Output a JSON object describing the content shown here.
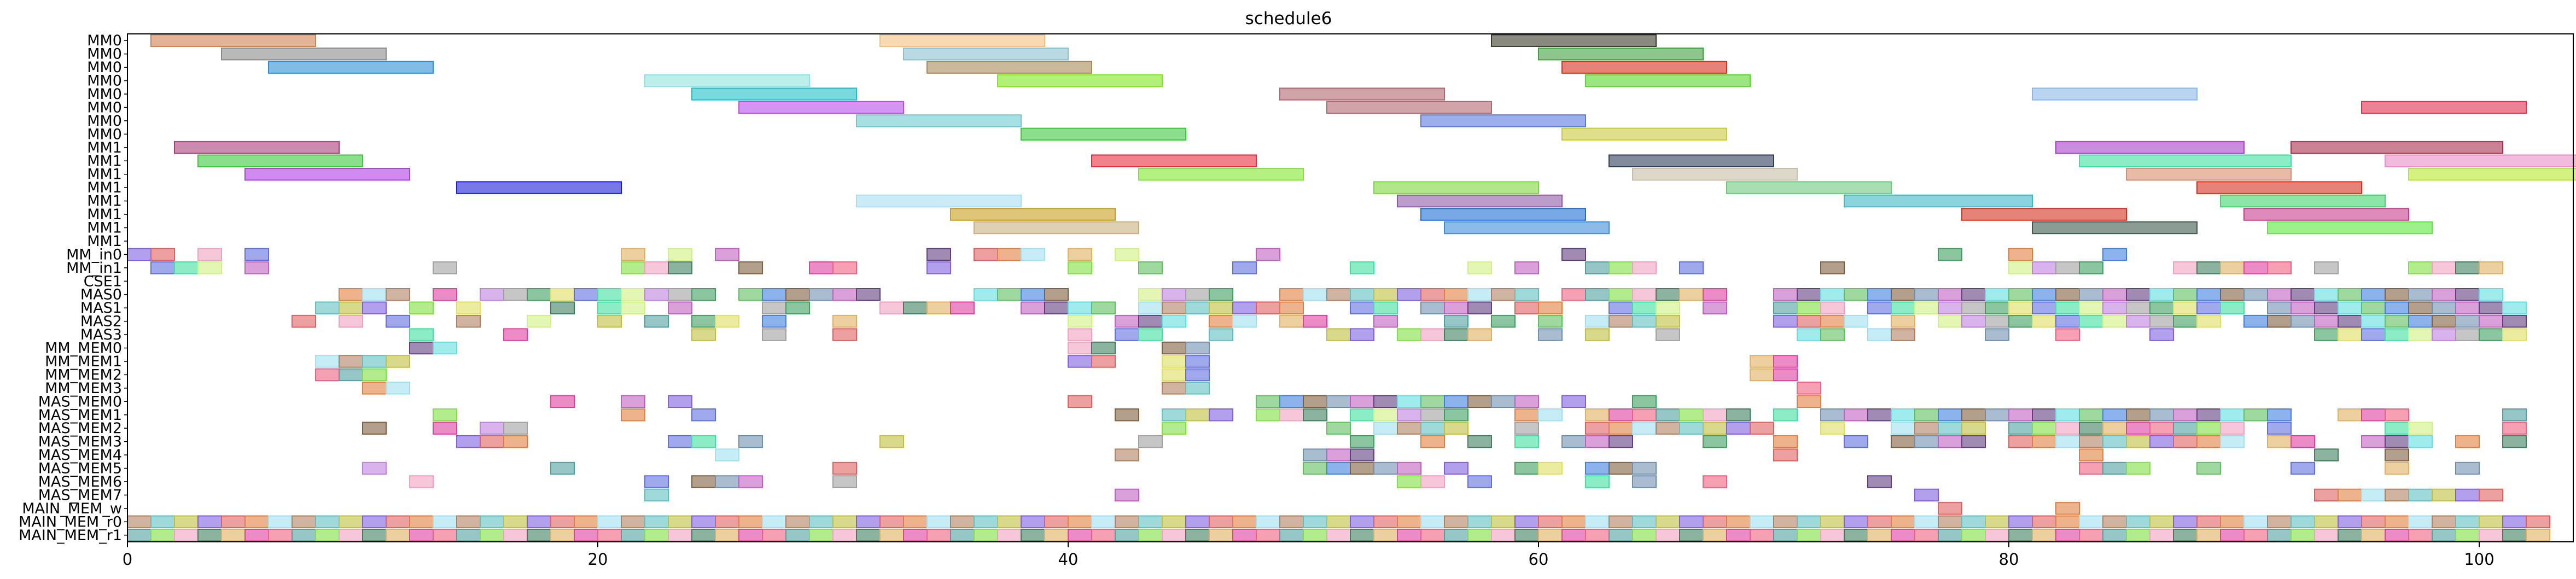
{
  "chart_data": {
    "type": "gantt",
    "title": "schedule6",
    "xlabel": "",
    "ylabel": "",
    "xlim": [
      0,
      104
    ],
    "x_ticks": [
      0,
      20,
      40,
      60,
      80,
      100
    ],
    "grid": false,
    "legend": "none",
    "rows": [
      "MM0",
      "MM0",
      "MM0",
      "MM0",
      "MM0",
      "MM0",
      "MM0",
      "MM0",
      "MM1",
      "MM1",
      "MM1",
      "MM1",
      "MM1",
      "MM1",
      "MM1",
      "MM1",
      "MM_in0",
      "MM_in1",
      "CSE1",
      "MAS0",
      "MAS1",
      "MAS2",
      "MAS3",
      "MM_MEM0",
      "MM_MEM1",
      "MM_MEM2",
      "MM_MEM3",
      "MAS_MEM0",
      "MAS_MEM1",
      "MAS_MEM2",
      "MAS_MEM3",
      "MAS_MEM4",
      "MAS_MEM5",
      "MAS_MEM6",
      "MAS_MEM7",
      "MAIN_MEM_w",
      "MAIN_MEM_r0",
      "MAIN_MEM_r1"
    ],
    "bars": [
      {
        "row": 0,
        "start": 1,
        "end": 8,
        "color": "#d2804e"
      },
      {
        "row": 0,
        "start": 32,
        "end": 39,
        "color": "#f5c07e"
      },
      {
        "row": 0,
        "start": 58,
        "end": 65,
        "color": "#3a3a2a"
      },
      {
        "row": 1,
        "start": 4,
        "end": 11,
        "color": "#8b8b8b"
      },
      {
        "row": 1,
        "start": 33,
        "end": 40,
        "color": "#8ac0d0"
      },
      {
        "row": 1,
        "start": 60,
        "end": 67,
        "color": "#3fa03f"
      },
      {
        "row": 2,
        "start": 6,
        "end": 13,
        "color": "#2b8fd6"
      },
      {
        "row": 2,
        "start": 34,
        "end": 41,
        "color": "#a88a5a"
      },
      {
        "row": 2,
        "start": 61,
        "end": 68,
        "color": "#d6301e"
      },
      {
        "row": 3,
        "start": 22,
        "end": 29,
        "color": "#8fe3e0"
      },
      {
        "row": 3,
        "start": 37,
        "end": 44,
        "color": "#7fe81e"
      },
      {
        "row": 3,
        "start": 62,
        "end": 69,
        "color": "#5ad62e"
      },
      {
        "row": 4,
        "start": 24,
        "end": 31,
        "color": "#1ec0c8"
      },
      {
        "row": 4,
        "start": 49,
        "end": 56,
        "color": "#b06870"
      },
      {
        "row": 4,
        "start": 81,
        "end": 88,
        "color": "#8ab8e8"
      },
      {
        "row": 5,
        "start": 26,
        "end": 33,
        "color": "#b84ee8"
      },
      {
        "row": 5,
        "start": 51,
        "end": 58,
        "color": "#b06870"
      },
      {
        "row": 5,
        "start": 95,
        "end": 102,
        "color": "#e0304e"
      },
      {
        "row": 6,
        "start": 31,
        "end": 38,
        "color": "#6ecad0"
      },
      {
        "row": 6,
        "start": 55,
        "end": 62,
        "color": "#5a78e0"
      },
      {
        "row": 7,
        "start": 38,
        "end": 45,
        "color": "#3ec83e"
      },
      {
        "row": 7,
        "start": 61,
        "end": 68,
        "color": "#c8c83e"
      },
      {
        "row": 8,
        "start": 2,
        "end": 9,
        "color": "#a83e78"
      },
      {
        "row": 8,
        "start": 82,
        "end": 90,
        "color": "#a83ec8"
      },
      {
        "row": 8,
        "start": 92,
        "end": 101,
        "color": "#a82e4e"
      },
      {
        "row": 9,
        "start": 3,
        "end": 10,
        "color": "#3ec83e"
      },
      {
        "row": 9,
        "start": 41,
        "end": 48,
        "color": "#e82e3e"
      },
      {
        "row": 9,
        "start": 63,
        "end": 70,
        "color": "#2e3e5a"
      },
      {
        "row": 9,
        "start": 83,
        "end": 92,
        "color": "#3ee09e"
      },
      {
        "row": 9,
        "start": 96,
        "end": 105,
        "color": "#e88ec8"
      },
      {
        "row": 10,
        "start": 5,
        "end": 12,
        "color": "#b03ee8"
      },
      {
        "row": 10,
        "start": 43,
        "end": 50,
        "color": "#7ee82e"
      },
      {
        "row": 10,
        "start": 64,
        "end": 71,
        "color": "#c8bea8"
      },
      {
        "row": 10,
        "start": 85,
        "end": 92,
        "color": "#d88e6e"
      },
      {
        "row": 10,
        "start": 97,
        "end": 106,
        "color": "#b8e82e"
      },
      {
        "row": 11,
        "start": 14,
        "end": 21,
        "color": "#1e1ed6"
      },
      {
        "row": 11,
        "start": 53,
        "end": 60,
        "color": "#7ed63e"
      },
      {
        "row": 11,
        "start": 68,
        "end": 75,
        "color": "#6ec87e"
      },
      {
        "row": 11,
        "start": 88,
        "end": 95,
        "color": "#d6301e"
      },
      {
        "row": 12,
        "start": 31,
        "end": 38,
        "color": "#a8e0f0"
      },
      {
        "row": 12,
        "start": 54,
        "end": 61,
        "color": "#8e5aa8"
      },
      {
        "row": 12,
        "start": 73,
        "end": 81,
        "color": "#3eb8c8"
      },
      {
        "row": 12,
        "start": 89,
        "end": 96,
        "color": "#3ed66e"
      },
      {
        "row": 13,
        "start": 35,
        "end": 42,
        "color": "#c89e1e"
      },
      {
        "row": 13,
        "start": 55,
        "end": 62,
        "color": "#1e6ed6"
      },
      {
        "row": 13,
        "start": 78,
        "end": 85,
        "color": "#d6301e"
      },
      {
        "row": 13,
        "start": 90,
        "end": 97,
        "color": "#c83e8e"
      },
      {
        "row": 14,
        "start": 36,
        "end": 43,
        "color": "#c8b07e"
      },
      {
        "row": 14,
        "start": 56,
        "end": 63,
        "color": "#3e8ed6"
      },
      {
        "row": 14,
        "start": 81,
        "end": 88,
        "color": "#3e5a4e"
      },
      {
        "row": 14,
        "start": 91,
        "end": 98,
        "color": "#5ae83e"
      }
    ],
    "dense_rows": [
      {
        "row": 16,
        "cells": [
          0,
          1,
          3,
          5,
          21,
          23,
          25,
          34,
          36,
          37,
          38,
          40,
          42,
          48,
          61,
          77,
          80,
          84
        ]
      },
      {
        "row": 17,
        "cells": [
          1,
          2,
          3,
          5,
          13,
          21,
          22,
          23,
          26,
          29,
          30,
          34,
          40,
          43,
          47,
          52,
          57,
          59,
          62,
          63,
          64,
          66,
          72,
          80,
          81,
          82,
          83,
          87,
          88,
          89,
          90,
          91,
          93,
          97,
          98,
          99,
          100
        ]
      },
      {
        "row": 19,
        "cells": [
          9,
          10,
          11,
          13,
          15,
          16,
          17,
          18,
          19,
          20,
          21,
          22,
          23,
          24,
          26,
          27,
          28,
          29,
          30,
          31,
          36,
          37,
          38,
          39,
          43,
          44,
          45,
          46,
          49,
          50,
          51,
          52,
          53,
          54,
          55,
          56,
          57,
          58,
          59,
          61,
          62,
          63,
          64,
          65,
          66,
          67,
          70,
          71,
          72,
          73,
          74,
          75,
          76,
          77,
          78,
          79,
          80,
          81,
          82,
          83,
          84,
          85,
          86,
          87,
          88,
          89,
          90,
          91,
          92,
          93,
          94,
          95,
          96,
          97,
          98,
          99,
          100
        ]
      },
      {
        "row": 20,
        "cells": [
          8,
          9,
          10,
          12,
          14,
          18,
          20,
          21,
          23,
          27,
          28,
          32,
          33,
          34,
          35,
          38,
          39,
          40,
          41,
          43,
          44,
          45,
          46,
          47,
          48,
          49,
          52,
          53,
          55,
          56,
          57,
          59,
          60,
          63,
          64,
          65,
          67,
          70,
          71,
          72,
          74,
          75,
          76,
          77,
          78,
          79,
          80,
          81,
          82,
          83,
          84,
          85,
          86,
          87,
          88,
          89,
          91,
          92,
          93,
          94,
          95,
          96,
          97,
          98,
          99,
          100,
          101
        ]
      },
      {
        "row": 21,
        "cells": [
          7,
          9,
          11,
          14,
          17,
          20,
          22,
          24,
          25,
          27,
          30,
          40,
          42,
          43,
          44,
          46,
          47,
          49,
          50,
          53,
          56,
          58,
          60,
          62,
          63,
          64,
          65,
          70,
          71,
          72,
          73,
          75,
          77,
          78,
          79,
          80,
          81,
          82,
          83,
          84,
          85,
          86,
          87,
          88,
          90,
          91,
          92,
          93,
          94,
          95,
          96,
          97,
          98,
          99,
          100,
          101
        ]
      },
      {
        "row": 22,
        "cells": [
          12,
          16,
          24,
          27,
          30,
          40,
          42,
          43,
          46,
          51,
          52,
          54,
          55,
          56,
          57,
          60,
          62,
          65,
          71,
          72,
          74,
          75,
          79,
          82,
          86,
          93,
          94,
          95,
          96,
          97,
          98,
          99,
          100,
          101
        ]
      },
      {
        "row": 23,
        "cells": [
          12,
          13,
          40,
          41,
          44,
          45
        ]
      },
      {
        "row": 24,
        "cells": [
          8,
          9,
          10,
          11,
          40,
          41,
          44,
          45,
          69,
          70
        ]
      },
      {
        "row": 25,
        "cells": [
          8,
          9,
          10,
          44,
          45,
          69,
          70
        ]
      },
      {
        "row": 26,
        "cells": [
          10,
          11,
          44,
          45,
          71
        ]
      },
      {
        "row": 27,
        "cells": [
          18,
          21,
          23,
          40,
          48,
          49,
          50,
          51,
          52,
          53,
          54,
          55,
          56,
          57,
          58,
          59,
          61,
          64,
          71
        ]
      },
      {
        "row": 28,
        "cells": [
          13,
          21,
          24,
          42,
          44,
          45,
          46,
          48,
          49,
          50,
          52,
          53,
          54,
          55,
          56,
          59,
          60,
          62,
          63,
          64,
          65,
          66,
          67,
          68,
          70,
          72,
          73,
          74,
          75,
          76,
          77,
          78,
          79,
          80,
          81,
          82,
          83,
          84,
          85,
          86,
          87,
          88,
          89,
          90,
          91,
          94,
          95,
          96,
          101
        ]
      },
      {
        "row": 29,
        "cells": [
          10,
          13,
          15,
          16,
          44,
          51,
          53,
          54,
          55,
          56,
          59,
          62,
          63,
          64,
          65,
          66,
          67,
          68,
          69,
          72,
          75,
          76,
          77,
          78,
          80,
          81,
          82,
          83,
          84,
          85,
          86,
          87,
          88,
          89,
          91,
          96,
          97,
          101
        ]
      },
      {
        "row": 30,
        "cells": [
          14,
          15,
          16,
          23,
          24,
          26,
          32,
          43,
          52,
          55,
          57,
          59,
          61,
          62,
          63,
          67,
          70,
          73,
          75,
          76,
          77,
          78,
          80,
          81,
          82,
          83,
          84,
          85,
          86,
          87,
          88,
          89,
          91,
          92,
          95,
          96,
          97,
          99,
          101
        ]
      },
      {
        "row": 31,
        "cells": [
          25,
          42,
          50,
          51,
          52,
          70,
          83,
          93,
          96
        ]
      },
      {
        "row": 32,
        "cells": [
          10,
          18,
          30,
          50,
          51,
          52,
          53,
          54,
          56,
          59,
          60,
          62,
          63,
          64,
          83,
          84,
          85,
          88,
          92,
          96,
          99
        ]
      },
      {
        "row": 33,
        "cells": [
          12,
          22,
          24,
          25,
          26,
          30,
          54,
          55,
          57,
          62,
          64,
          67,
          74
        ]
      },
      {
        "row": 34,
        "cells": [
          22,
          42,
          76,
          93,
          94,
          95,
          96,
          97,
          98,
          99,
          100
        ]
      },
      {
        "row": 35,
        "cells": [
          77,
          82
        ]
      },
      {
        "row": 36,
        "cells": [
          0,
          1,
          2,
          3,
          4,
          5,
          6,
          7,
          8,
          9,
          10,
          11,
          12,
          13,
          14,
          15,
          16,
          17,
          18,
          19,
          20,
          21,
          22,
          23,
          24,
          25,
          26,
          27,
          28,
          29,
          30,
          31,
          32,
          33,
          34,
          35,
          36,
          37,
          38,
          39,
          40,
          41,
          42,
          43,
          44,
          45,
          46,
          47,
          48,
          49,
          50,
          51,
          52,
          53,
          54,
          55,
          56,
          57,
          58,
          59,
          60,
          61,
          62,
          63,
          64,
          65,
          66,
          67,
          68,
          69,
          70,
          71,
          72,
          73,
          74,
          75,
          76,
          77,
          78,
          79,
          80,
          81,
          82,
          83,
          84,
          85,
          86,
          87,
          88,
          89,
          90,
          91,
          92,
          93,
          94,
          95,
          96,
          97,
          98,
          99,
          100,
          101,
          102
        ]
      },
      {
        "row": 37,
        "cells": [
          0,
          1,
          2,
          3,
          4,
          5,
          6,
          7,
          8,
          9,
          10,
          11,
          12,
          13,
          14,
          15,
          16,
          17,
          18,
          19,
          20,
          21,
          22,
          23,
          24,
          25,
          26,
          27,
          28,
          29,
          30,
          31,
          32,
          33,
          34,
          35,
          36,
          37,
          38,
          39,
          40,
          41,
          42,
          43,
          44,
          45,
          46,
          47,
          48,
          49,
          50,
          51,
          52,
          53,
          54,
          55,
          56,
          57,
          58,
          59,
          60,
          61,
          62,
          63,
          64,
          65,
          66,
          67,
          68,
          69,
          70,
          71,
          72,
          73,
          74,
          75,
          76,
          77,
          78,
          79,
          80,
          81,
          82,
          83,
          84,
          85,
          86,
          87,
          88,
          89,
          90,
          91,
          92,
          93,
          94,
          95,
          96,
          97,
          98,
          99,
          100,
          101,
          102
        ]
      }
    ],
    "palette": [
      "#e06060",
      "#60c060",
      "#6070e0",
      "#e0b060",
      "#60c0c0",
      "#c060c0",
      "#a0a0a0",
      "#80e040",
      "#e08040",
      "#4080e0",
      "#40e0a0",
      "#e040a0",
      "#c0c040",
      "#604080",
      "#40a060",
      "#f0a0c0",
      "#a0e0f0",
      "#806040",
      "#d0f080",
      "#f06080",
      "#8060e0",
      "#60e0e0",
      "#e0e060",
      "#408060",
      "#b08060",
      "#7090b0",
      "#c080e0",
      "#50a0a0"
    ]
  }
}
